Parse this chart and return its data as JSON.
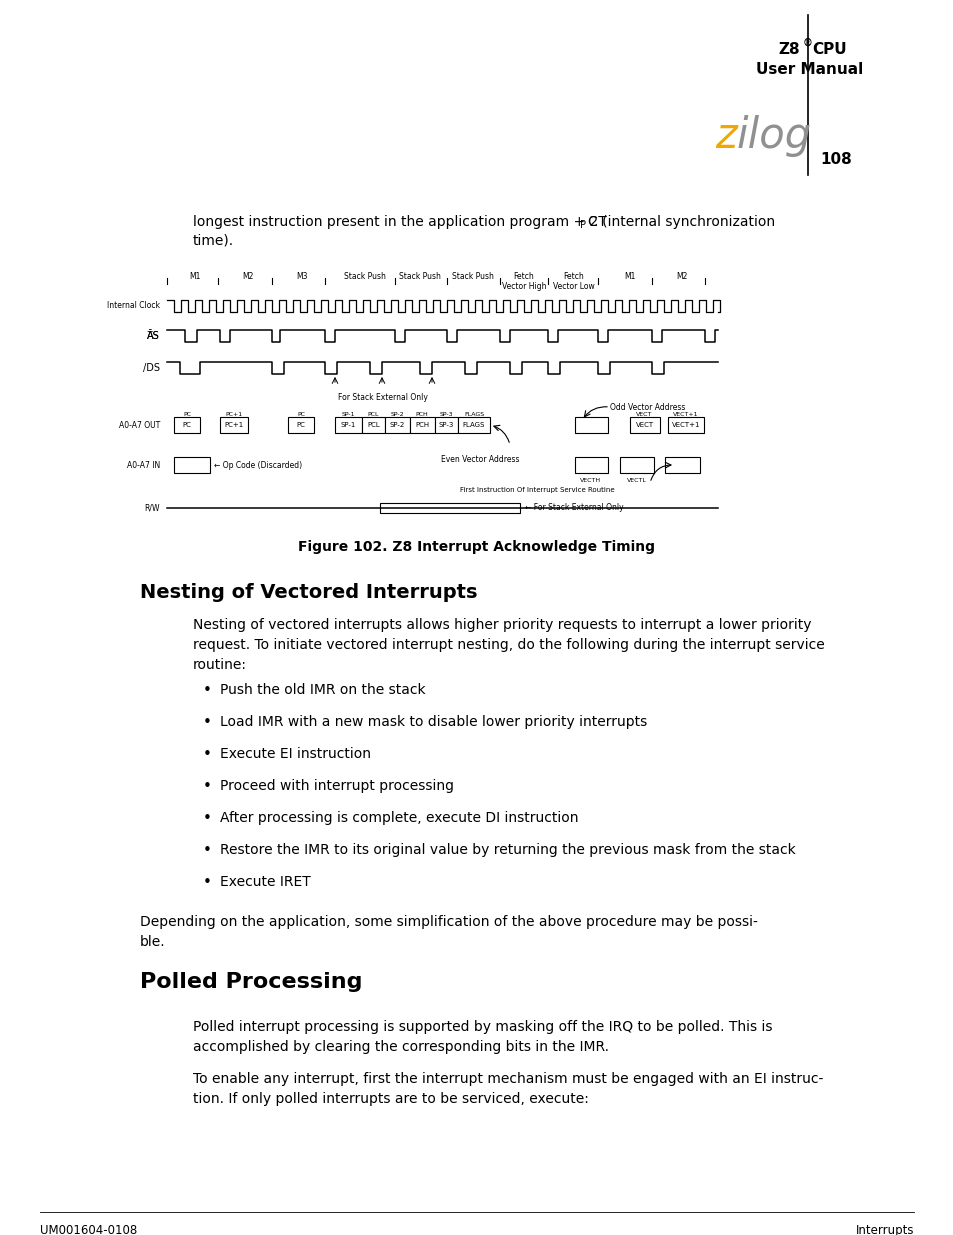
{
  "bg_color": "#ffffff",
  "page_number": "108",
  "zilog_z_color": "#f0a800",
  "zilog_ilog_color": "#909090",
  "footer_left": "UM001604-0108",
  "footer_right": "Interrupts",
  "intro_line1": "longest instruction present in the application program + 2T",
  "intro_sub": "P",
  "intro_line1b": "C (internal synchronization",
  "intro_line2": "time).",
  "figure_caption": "Figure 102. Z8 Interrupt Acknowledge Timing",
  "section1_title": "Nesting of Vectored Interrupts",
  "section1_body": "Nesting of vectored interrupts allows higher priority requests to interrupt a lower priority\nrequest. To initiate vectored interrupt nesting, do the following during the interrupt service\nroutine:",
  "bullets1": [
    "Push the old IMR on the stack",
    "Load IMR with a new mask to disable lower priority interrupts",
    "Execute EI instruction",
    "Proceed with interrupt processing",
    "After processing is complete, execute DI instruction",
    "Restore the IMR to its original value by returning the previous mask from the stack",
    "Execute IRET"
  ],
  "section1_closing": "Depending on the application, some simplification of the above procedure may be possi-\nble.",
  "section2_title": "Polled Processing",
  "section2_body1": "Polled interrupt processing is supported by masking off the IRQ to be polled. This is\naccomplished by clearing the corresponding bits in the IMR.",
  "section2_body2": "To enable any interrupt, first the interrupt mechanism must be engaged with an EI instruc-\ntion. If only polled interrupts are to be serviced, execute:"
}
